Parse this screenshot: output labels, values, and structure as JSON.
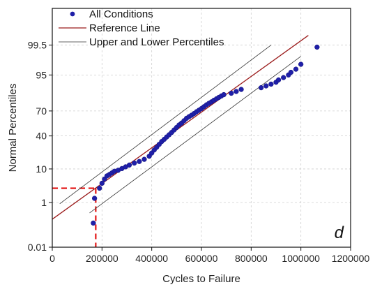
{
  "chart_data": {
    "type": "scatter",
    "title": "",
    "xlabel": "Cycles to Failure",
    "ylabel": "Normal Percentiles",
    "panel_label": "d",
    "xlim": [
      0,
      1200000
    ],
    "ylim_percent": [
      0.01,
      99.99
    ],
    "y_scale": "normal-probability",
    "grid": true,
    "legend_position": "top-left",
    "x_ticks": [
      0,
      200000,
      400000,
      600000,
      800000,
      1000000,
      1200000
    ],
    "x_tick_labels": [
      "0",
      "200000",
      "400000",
      "600000",
      "800000",
      "1000000",
      "1200000"
    ],
    "y_ticks": [
      0.01,
      1,
      10,
      40,
      70,
      95,
      99.5
    ],
    "y_tick_labels": [
      "0.01",
      "1",
      "10",
      "40",
      "70",
      "95",
      "99.5"
    ],
    "legend": [
      {
        "label": "All Conditions",
        "kind": "marker"
      },
      {
        "label": "Reference Line",
        "kind": "line"
      },
      {
        "label": "Upper and Lower Percentiles",
        "kind": "line"
      }
    ],
    "reference_line": {
      "x": [
        0,
        1030000
      ],
      "y": [
        0.22,
        99.8
      ]
    },
    "upper_percentile": {
      "x": [
        30000,
        880000
      ],
      "y": [
        0.9,
        99.5
      ]
    },
    "lower_percentile": {
      "x": [
        150000,
        1000000
      ],
      "y": [
        0.4,
        98.7
      ]
    },
    "highlight_point": {
      "x": 175000,
      "y": 3.0
    },
    "series": [
      {
        "name": "All Conditions",
        "x": [
          165000,
          170000,
          190000,
          200000,
          210000,
          220000,
          230000,
          240000,
          250000,
          265000,
          280000,
          295000,
          310000,
          330000,
          350000,
          370000,
          390000,
          400000,
          410000,
          420000,
          430000,
          440000,
          450000,
          460000,
          470000,
          480000,
          490000,
          500000,
          510000,
          520000,
          530000,
          540000,
          550000,
          560000,
          570000,
          580000,
          590000,
          600000,
          610000,
          620000,
          630000,
          640000,
          650000,
          660000,
          670000,
          680000,
          690000,
          720000,
          740000,
          760000,
          840000,
          860000,
          880000,
          900000,
          910000,
          930000,
          950000,
          960000,
          980000,
          1000000,
          1065000
        ],
        "y": [
          0.15,
          1.4,
          3.0,
          4.2,
          5.5,
          6.7,
          7.3,
          8.0,
          8.8,
          9.3,
          10.2,
          11.2,
          12.3,
          13.6,
          14.7,
          16.3,
          18.8,
          21.6,
          24.5,
          27.2,
          30.3,
          33.4,
          35.9,
          38.7,
          41.4,
          44.2,
          47.3,
          50.4,
          53.5,
          55.8,
          58.7,
          61.6,
          63.5,
          65.2,
          67.1,
          69.1,
          70.8,
          72.5,
          74.4,
          76.2,
          77.7,
          79.0,
          80.4,
          81.6,
          82.8,
          83.9,
          84.9,
          85.9,
          87.1,
          88.4,
          89.4,
          90.4,
          91.3,
          92.2,
          93.2,
          94.1,
          95.0,
          95.8,
          96.6,
          97.6,
          99.4
        ]
      }
    ]
  }
}
